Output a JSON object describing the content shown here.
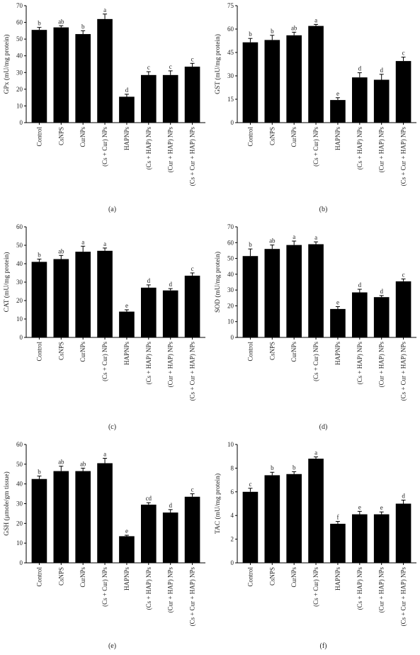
{
  "chart_data": [
    {
      "type": "bar",
      "panel_label": "(a)",
      "ylabel": "GPx (mU/mg protein)",
      "ylim": [
        0,
        70
      ],
      "yticks": [
        0,
        10,
        20,
        30,
        40,
        50,
        60,
        70
      ],
      "categories": [
        "Control",
        "CsNPS",
        "CurNPs",
        "(Cs + Cur) NPs",
        "HAPNPs",
        "(Cs + HAP) NPs",
        "(Cur + HAP) NPs",
        "(Cs + Cur + HAP) NPs"
      ],
      "values": [
        55.5,
        57,
        53,
        62,
        15.5,
        28.5,
        28.5,
        33.5
      ],
      "errors": [
        1.5,
        1.0,
        2.0,
        3.0,
        1.5,
        2.0,
        2.5,
        2.0
      ],
      "labels": [
        "b",
        "ab",
        "b",
        "a",
        "d",
        "c",
        "c",
        "c"
      ]
    },
    {
      "type": "bar",
      "panel_label": "(b)",
      "ylabel": "GST (mU/mg protein)",
      "ylim": [
        0,
        75
      ],
      "yticks": [
        0,
        15,
        30,
        45,
        60,
        75
      ],
      "categories": [
        "Control",
        "CsNPS",
        "CurNPs",
        "(Cs + Cur) NPs",
        "HAPNPs",
        "(Cs + HAP) NPs",
        "(Cur + HAP) NPs",
        "(Cs + Cur + HAP) NPs"
      ],
      "values": [
        51.5,
        53,
        56,
        62,
        14.5,
        29,
        27.5,
        39.5
      ],
      "errors": [
        2.5,
        3.0,
        2.0,
        1.0,
        1.5,
        3.0,
        3.5,
        2.5
      ],
      "labels": [
        "b",
        "b",
        "ab",
        "a",
        "e",
        "d",
        "d",
        "c"
      ]
    },
    {
      "type": "bar",
      "panel_label": "(c)",
      "ylabel": "CAT (mU/mg protein)",
      "ylim": [
        0,
        60
      ],
      "yticks": [
        0,
        10,
        20,
        30,
        40,
        50,
        60
      ],
      "categories": [
        "Control",
        "CsNPS",
        "CurNPs",
        "(Cs + Cur) NPs",
        "HAPNPs",
        "(Cs + HAP) NPs",
        "(Cur + HAP) NPs",
        "(Cs + Cur + HAP) NPs"
      ],
      "values": [
        41,
        42.5,
        46.5,
        47,
        14,
        27,
        25.5,
        33.5
      ],
      "errors": [
        1.5,
        2.0,
        3.0,
        1.5,
        1.0,
        1.5,
        1.0,
        1.5
      ],
      "labels": [
        "b",
        "ab",
        "a",
        "a",
        "e",
        "d",
        "d",
        "c"
      ]
    },
    {
      "type": "bar",
      "panel_label": "(d)",
      "ylabel": "SOD (mU/mg protein)",
      "ylim": [
        0,
        70
      ],
      "yticks": [
        0,
        10,
        20,
        30,
        40,
        50,
        60,
        70
      ],
      "categories": [
        "Control",
        "CsNPS",
        "CurNPs",
        "(Cs + Cur) NPs",
        "HAPNPs",
        "(Cs + HAP) NPs",
        "(Cur + HAP) NPs",
        "(Cs + Cur + HAP) NPs"
      ],
      "values": [
        51.5,
        56,
        58.5,
        59,
        18,
        28.5,
        25.5,
        35.5
      ],
      "errors": [
        4.5,
        2.5,
        2.5,
        1.5,
        1.5,
        2.0,
        1.0,
        1.5
      ],
      "labels": [
        "b",
        "ab",
        "a",
        "a",
        "e",
        "d",
        "d",
        "c"
      ]
    },
    {
      "type": "bar",
      "panel_label": "(e)",
      "ylabel": "GSH (μmole/gm tissue)",
      "ylim": [
        0,
        60
      ],
      "yticks": [
        0,
        10,
        20,
        30,
        40,
        50,
        60
      ],
      "categories": [
        "Control",
        "CsNPS",
        "CurNPs",
        "(Cs + Cur) NPs",
        "HAPNPs",
        "(Cs + HAP) NPs",
        "(Cur + HAP) NPs",
        "(Cs + Cur + HAP) NPs"
      ],
      "values": [
        42.5,
        46.5,
        46.5,
        50.5,
        13.5,
        29.5,
        25.5,
        33.5
      ],
      "errors": [
        1.5,
        2.5,
        1.5,
        2.5,
        0.5,
        1.0,
        1.5,
        1.5
      ],
      "labels": [
        "b",
        "ab",
        "ab",
        "a",
        "e",
        "cd",
        "d",
        "c"
      ]
    },
    {
      "type": "bar",
      "panel_label": "(f)",
      "ylabel": "TAC (mU/mg protein)",
      "ylim": [
        0,
        10
      ],
      "yticks": [
        0,
        2,
        4,
        6,
        8,
        10
      ],
      "categories": [
        "Control",
        "CsNPS",
        "CurNPs",
        "(Cs + Cur) NPs",
        "HAPNPs",
        "(Cs + HAP) NPs",
        "(Cur + HAP) NPs",
        "(Cs + Cur + HAP) NPs"
      ],
      "values": [
        6.0,
        7.4,
        7.5,
        8.8,
        3.3,
        4.1,
        4.1,
        5.0
      ],
      "errors": [
        0.3,
        0.25,
        0.2,
        0.15,
        0.2,
        0.25,
        0.2,
        0.3
      ],
      "labels": [
        "c",
        "b",
        "b",
        "a",
        "f",
        "e",
        "e",
        "d"
      ]
    }
  ]
}
